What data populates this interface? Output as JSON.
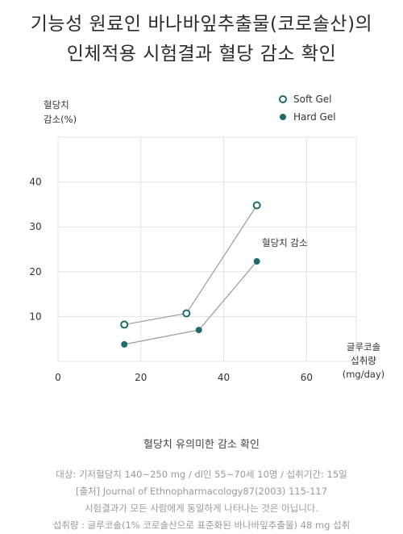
{
  "title_line1": "기능성 원료인 바나바잎추출물(코로솔산)의",
  "title_line2": "인체적용 시험결과 혈당 감소 확인",
  "caption": "혈당치 유의미한 감소 확인",
  "footnotes": [
    "대상: 기저혈당치 140~250 mg / dl인 55~70세 10명 / 섭취기간: 15일",
    "[출처] Journal of Ethnopharmacology87(2003) 115-117",
    "시험결과가 모든 사람에게 동일하게 나타나는 것은 아닙니다.",
    "섭취량 : 글루코솔(1% 코로솔산으로 표준화된 바나바잎추출물) 48 mg 섭취"
  ],
  "colors": {
    "series": "#1f6b6b",
    "line": "#9a9a9a",
    "grid": "#e3e3e3"
  },
  "chart_data": {
    "type": "line",
    "ylabel": [
      "혈당치",
      "감소(%)"
    ],
    "xlabel": [
      "글루코솔",
      "섭취량",
      "(mg/day)"
    ],
    "xlim": [
      0,
      72
    ],
    "ylim": [
      0,
      50
    ],
    "xticks": [
      0,
      20,
      40,
      60
    ],
    "yticks": [
      10,
      20,
      30,
      40
    ],
    "grid": true,
    "legend_position": "top-right",
    "annotation": "혈당치 감소",
    "series": [
      {
        "name": "Soft Gel",
        "marker": "hollow",
        "x": [
          16,
          31,
          48
        ],
        "y": [
          8.2,
          10.7,
          34.8
        ]
      },
      {
        "name": "Hard Gel",
        "marker": "filled",
        "x": [
          16,
          34,
          48
        ],
        "y": [
          3.8,
          7.0,
          22.3
        ]
      }
    ]
  }
}
